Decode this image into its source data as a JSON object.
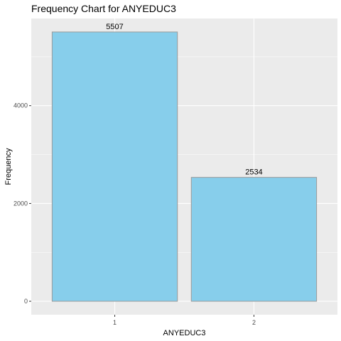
{
  "chart_data": {
    "type": "bar",
    "title": "Frequency Chart for ANYEDUC3",
    "xlabel": "ANYEDUC3",
    "ylabel": "Frequency",
    "categories": [
      "1",
      "2"
    ],
    "values": [
      5507,
      2534
    ],
    "data_labels": [
      "5507",
      "2534"
    ],
    "y_ticks": [
      0,
      2000,
      4000
    ],
    "y_tick_labels": [
      "0",
      "2000",
      "4000"
    ],
    "ylim": [
      -275,
      5783
    ],
    "grid": true,
    "bar_fill": "#87CEEB",
    "bar_stroke": "#9a9a9a",
    "panel_background": "#EBEBEB",
    "grid_color": "#ffffff"
  }
}
